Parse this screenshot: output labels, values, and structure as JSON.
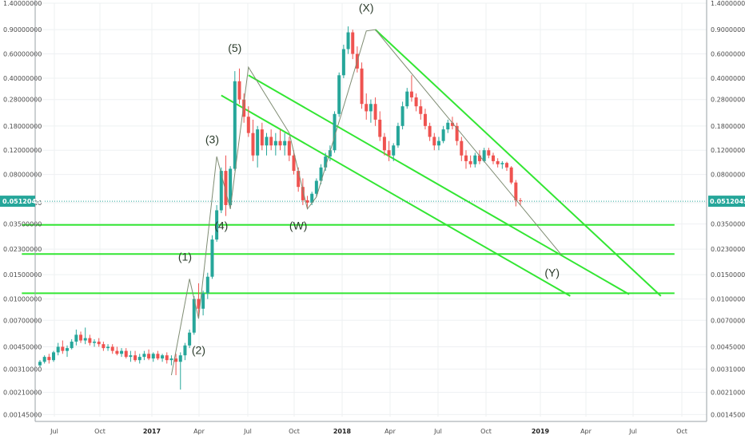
{
  "chart_data": {
    "type": "candlestick",
    "scale": "log",
    "ylim": [
      0.0014,
      1.4
    ],
    "grid": true,
    "y_ticks": [
      "1.40000000",
      "0.90000000",
      "0.60000000",
      "0.40000000",
      "0.28000000",
      "0.18000000",
      "0.12000000",
      "0.08000000",
      "0.05000000",
      "0.03500000",
      "0.02300000",
      "0.01500000",
      "0.01000000",
      "0.00700000",
      "0.00450000",
      "0.00310000",
      "0.00210000",
      "0.00145000"
    ],
    "x_ticks": [
      {
        "label": "Jul",
        "year": false
      },
      {
        "label": "Oct",
        "year": false
      },
      {
        "label": "2017",
        "year": true
      },
      {
        "label": "Apr",
        "year": false
      },
      {
        "label": "Jul",
        "year": false
      },
      {
        "label": "Oct",
        "year": false
      },
      {
        "label": "2018",
        "year": true
      },
      {
        "label": "Apr",
        "year": false
      },
      {
        "label": "Jul",
        "year": false
      },
      {
        "label": "Oct",
        "year": false
      },
      {
        "label": "2019",
        "year": true
      },
      {
        "label": "Apr",
        "year": false
      },
      {
        "label": "Jul",
        "year": false
      },
      {
        "label": "Oct",
        "year": false
      }
    ],
    "last_price": "0.05120458",
    "up_color": "#26a69a",
    "down_color": "#ef5350",
    "trendline_color": "#33e633",
    "wave_line_color": "#7f8c73",
    "candles": [
      {
        "o": 0.0033,
        "h": 0.0036,
        "l": 0.0032,
        "c": 0.0035
      },
      {
        "o": 0.0035,
        "h": 0.0039,
        "l": 0.0034,
        "c": 0.0038
      },
      {
        "o": 0.0038,
        "h": 0.004,
        "l": 0.0034,
        "c": 0.0036
      },
      {
        "o": 0.0036,
        "h": 0.0042,
        "l": 0.0035,
        "c": 0.0041
      },
      {
        "o": 0.0041,
        "h": 0.0048,
        "l": 0.0039,
        "c": 0.0045
      },
      {
        "o": 0.0045,
        "h": 0.005,
        "l": 0.004,
        "c": 0.0042
      },
      {
        "o": 0.0042,
        "h": 0.0046,
        "l": 0.0038,
        "c": 0.0044
      },
      {
        "o": 0.0044,
        "h": 0.0051,
        "l": 0.0043,
        "c": 0.0049
      },
      {
        "o": 0.0049,
        "h": 0.006,
        "l": 0.0046,
        "c": 0.0055
      },
      {
        "o": 0.0055,
        "h": 0.0058,
        "l": 0.0048,
        "c": 0.005
      },
      {
        "o": 0.005,
        "h": 0.0062,
        "l": 0.0047,
        "c": 0.0052
      },
      {
        "o": 0.0052,
        "h": 0.0055,
        "l": 0.0046,
        "c": 0.0048
      },
      {
        "o": 0.0048,
        "h": 0.0051,
        "l": 0.0045,
        "c": 0.0049
      },
      {
        "o": 0.0049,
        "h": 0.0052,
        "l": 0.0045,
        "c": 0.0047
      },
      {
        "o": 0.0047,
        "h": 0.0049,
        "l": 0.0042,
        "c": 0.0044
      },
      {
        "o": 0.0044,
        "h": 0.0047,
        "l": 0.0042,
        "c": 0.0045
      },
      {
        "o": 0.0045,
        "h": 0.0047,
        "l": 0.004,
        "c": 0.0042
      },
      {
        "o": 0.0042,
        "h": 0.0045,
        "l": 0.0039,
        "c": 0.004
      },
      {
        "o": 0.004,
        "h": 0.0044,
        "l": 0.0038,
        "c": 0.0042
      },
      {
        "o": 0.0042,
        "h": 0.0044,
        "l": 0.0037,
        "c": 0.0038
      },
      {
        "o": 0.0038,
        "h": 0.0042,
        "l": 0.0035,
        "c": 0.0039
      },
      {
        "o": 0.0039,
        "h": 0.0042,
        "l": 0.0035,
        "c": 0.0036
      },
      {
        "o": 0.0036,
        "h": 0.004,
        "l": 0.0034,
        "c": 0.0038
      },
      {
        "o": 0.0038,
        "h": 0.0042,
        "l": 0.0036,
        "c": 0.004
      },
      {
        "o": 0.004,
        "h": 0.0043,
        "l": 0.0036,
        "c": 0.0037
      },
      {
        "o": 0.0037,
        "h": 0.0041,
        "l": 0.0035,
        "c": 0.004
      },
      {
        "o": 0.004,
        "h": 0.0042,
        "l": 0.0036,
        "c": 0.0037
      },
      {
        "o": 0.0037,
        "h": 0.004,
        "l": 0.0035,
        "c": 0.0039
      },
      {
        "o": 0.0039,
        "h": 0.0041,
        "l": 0.0034,
        "c": 0.0036
      },
      {
        "o": 0.0036,
        "h": 0.0039,
        "l": 0.0033,
        "c": 0.0037
      },
      {
        "o": 0.0037,
        "h": 0.004,
        "l": 0.0028,
        "c": 0.0035
      },
      {
        "o": 0.0035,
        "h": 0.0041,
        "l": 0.0022,
        "c": 0.0039
      },
      {
        "o": 0.0039,
        "h": 0.0048,
        "l": 0.0036,
        "c": 0.0046
      },
      {
        "o": 0.0046,
        "h": 0.006,
        "l": 0.0044,
        "c": 0.0057
      },
      {
        "o": 0.0057,
        "h": 0.0105,
        "l": 0.0055,
        "c": 0.01
      },
      {
        "o": 0.01,
        "h": 0.013,
        "l": 0.0072,
        "c": 0.0085
      },
      {
        "o": 0.0085,
        "h": 0.0115,
        "l": 0.0076,
        "c": 0.011
      },
      {
        "o": 0.011,
        "h": 0.0155,
        "l": 0.01,
        "c": 0.0145
      },
      {
        "o": 0.0145,
        "h": 0.029,
        "l": 0.014,
        "c": 0.027
      },
      {
        "o": 0.027,
        "h": 0.048,
        "l": 0.026,
        "c": 0.044
      },
      {
        "o": 0.044,
        "h": 0.09,
        "l": 0.042,
        "c": 0.085
      },
      {
        "o": 0.085,
        "h": 0.11,
        "l": 0.04,
        "c": 0.048
      },
      {
        "o": 0.048,
        "h": 0.092,
        "l": 0.045,
        "c": 0.088
      },
      {
        "o": 0.088,
        "h": 0.45,
        "l": 0.085,
        "c": 0.38
      },
      {
        "o": 0.38,
        "h": 0.47,
        "l": 0.26,
        "c": 0.28
      },
      {
        "o": 0.28,
        "h": 0.31,
        "l": 0.19,
        "c": 0.21
      },
      {
        "o": 0.21,
        "h": 0.25,
        "l": 0.15,
        "c": 0.16
      },
      {
        "o": 0.16,
        "h": 0.2,
        "l": 0.1,
        "c": 0.11
      },
      {
        "o": 0.11,
        "h": 0.18,
        "l": 0.09,
        "c": 0.17
      },
      {
        "o": 0.17,
        "h": 0.19,
        "l": 0.12,
        "c": 0.13
      },
      {
        "o": 0.13,
        "h": 0.16,
        "l": 0.11,
        "c": 0.15
      },
      {
        "o": 0.15,
        "h": 0.17,
        "l": 0.12,
        "c": 0.13
      },
      {
        "o": 0.13,
        "h": 0.16,
        "l": 0.11,
        "c": 0.14
      },
      {
        "o": 0.14,
        "h": 0.17,
        "l": 0.12,
        "c": 0.13
      },
      {
        "o": 0.13,
        "h": 0.16,
        "l": 0.11,
        "c": 0.14
      },
      {
        "o": 0.14,
        "h": 0.15,
        "l": 0.1,
        "c": 0.11
      },
      {
        "o": 0.11,
        "h": 0.12,
        "l": 0.08,
        "c": 0.085
      },
      {
        "o": 0.085,
        "h": 0.09,
        "l": 0.06,
        "c": 0.065
      },
      {
        "o": 0.065,
        "h": 0.075,
        "l": 0.048,
        "c": 0.052
      },
      {
        "o": 0.052,
        "h": 0.056,
        "l": 0.045,
        "c": 0.05
      },
      {
        "o": 0.05,
        "h": 0.06,
        "l": 0.048,
        "c": 0.058
      },
      {
        "o": 0.058,
        "h": 0.075,
        "l": 0.055,
        "c": 0.072
      },
      {
        "o": 0.072,
        "h": 0.095,
        "l": 0.068,
        "c": 0.09
      },
      {
        "o": 0.09,
        "h": 0.115,
        "l": 0.085,
        "c": 0.108
      },
      {
        "o": 0.108,
        "h": 0.13,
        "l": 0.1,
        "c": 0.12
      },
      {
        "o": 0.12,
        "h": 0.23,
        "l": 0.115,
        "c": 0.22
      },
      {
        "o": 0.22,
        "h": 0.44,
        "l": 0.21,
        "c": 0.42
      },
      {
        "o": 0.42,
        "h": 0.7,
        "l": 0.4,
        "c": 0.65
      },
      {
        "o": 0.65,
        "h": 0.95,
        "l": 0.6,
        "c": 0.86
      },
      {
        "o": 0.86,
        "h": 0.9,
        "l": 0.55,
        "c": 0.6
      },
      {
        "o": 0.6,
        "h": 0.68,
        "l": 0.44,
        "c": 0.47
      },
      {
        "o": 0.47,
        "h": 0.52,
        "l": 0.24,
        "c": 0.26
      },
      {
        "o": 0.26,
        "h": 0.31,
        "l": 0.2,
        "c": 0.23
      },
      {
        "o": 0.23,
        "h": 0.28,
        "l": 0.19,
        "c": 0.26
      },
      {
        "o": 0.26,
        "h": 0.29,
        "l": 0.18,
        "c": 0.2
      },
      {
        "o": 0.2,
        "h": 0.23,
        "l": 0.14,
        "c": 0.15
      },
      {
        "o": 0.15,
        "h": 0.16,
        "l": 0.11,
        "c": 0.12
      },
      {
        "o": 0.12,
        "h": 0.14,
        "l": 0.1,
        "c": 0.11
      },
      {
        "o": 0.11,
        "h": 0.135,
        "l": 0.1,
        "c": 0.13
      },
      {
        "o": 0.13,
        "h": 0.19,
        "l": 0.125,
        "c": 0.18
      },
      {
        "o": 0.18,
        "h": 0.27,
        "l": 0.17,
        "c": 0.25
      },
      {
        "o": 0.25,
        "h": 0.34,
        "l": 0.24,
        "c": 0.32
      },
      {
        "o": 0.32,
        "h": 0.42,
        "l": 0.27,
        "c": 0.29
      },
      {
        "o": 0.29,
        "h": 0.31,
        "l": 0.23,
        "c": 0.25
      },
      {
        "o": 0.25,
        "h": 0.28,
        "l": 0.2,
        "c": 0.22
      },
      {
        "o": 0.22,
        "h": 0.24,
        "l": 0.17,
        "c": 0.18
      },
      {
        "o": 0.18,
        "h": 0.19,
        "l": 0.14,
        "c": 0.15
      },
      {
        "o": 0.15,
        "h": 0.16,
        "l": 0.12,
        "c": 0.13
      },
      {
        "o": 0.13,
        "h": 0.15,
        "l": 0.12,
        "c": 0.14
      },
      {
        "o": 0.14,
        "h": 0.18,
        "l": 0.135,
        "c": 0.17
      },
      {
        "o": 0.17,
        "h": 0.2,
        "l": 0.16,
        "c": 0.19
      },
      {
        "o": 0.19,
        "h": 0.21,
        "l": 0.17,
        "c": 0.18
      },
      {
        "o": 0.18,
        "h": 0.19,
        "l": 0.13,
        "c": 0.14
      },
      {
        "o": 0.14,
        "h": 0.15,
        "l": 0.1,
        "c": 0.11
      },
      {
        "o": 0.11,
        "h": 0.12,
        "l": 0.088,
        "c": 0.1
      },
      {
        "o": 0.1,
        "h": 0.11,
        "l": 0.09,
        "c": 0.095
      },
      {
        "o": 0.095,
        "h": 0.115,
        "l": 0.09,
        "c": 0.11
      },
      {
        "o": 0.11,
        "h": 0.12,
        "l": 0.095,
        "c": 0.1
      },
      {
        "o": 0.1,
        "h": 0.125,
        "l": 0.098,
        "c": 0.12
      },
      {
        "o": 0.12,
        "h": 0.125,
        "l": 0.105,
        "c": 0.11
      },
      {
        "o": 0.11,
        "h": 0.115,
        "l": 0.095,
        "c": 0.1
      },
      {
        "o": 0.1,
        "h": 0.105,
        "l": 0.09,
        "c": 0.095
      },
      {
        "o": 0.095,
        "h": 0.1,
        "l": 0.088,
        "c": 0.097
      },
      {
        "o": 0.097,
        "h": 0.099,
        "l": 0.085,
        "c": 0.09
      },
      {
        "o": 0.09,
        "h": 0.092,
        "l": 0.068,
        "c": 0.07
      },
      {
        "o": 0.07,
        "h": 0.073,
        "l": 0.047,
        "c": 0.052
      },
      {
        "o": 0.052,
        "h": 0.054,
        "l": 0.048,
        "c": 0.0512
      }
    ],
    "trendlines": [
      {
        "name": "channel-upper",
        "from": {
          "i": 46,
          "v": 0.42
        },
        "to": {
          "i": 130,
          "v": 0.0108
        }
      },
      {
        "name": "channel-lower",
        "from": {
          "i": 40,
          "v": 0.3
        },
        "to": {
          "i": 117,
          "v": 0.0105
        }
      },
      {
        "name": "falling-line",
        "from": {
          "i": 74,
          "v": 0.9
        },
        "to": {
          "i": 137,
          "v": 0.0105
        }
      },
      {
        "name": "support-035",
        "from": {
          "i": -4,
          "v": 0.0345
        },
        "to": {
          "i": 140,
          "v": 0.0345
        }
      },
      {
        "name": "support-021",
        "from": {
          "i": -4,
          "v": 0.0212
        },
        "to": {
          "i": 140,
          "v": 0.0212
        }
      },
      {
        "name": "support-011",
        "from": {
          "i": -4,
          "v": 0.011
        },
        "to": {
          "i": 140,
          "v": 0.011
        }
      }
    ],
    "wave_path": [
      {
        "i": 29,
        "v": 0.0028
      },
      {
        "i": 33,
        "v": 0.014
      },
      {
        "i": 35,
        "v": 0.0072
      },
      {
        "i": 39,
        "v": 0.108
      },
      {
        "i": 42,
        "v": 0.045
      },
      {
        "i": 46,
        "v": 0.48
      },
      {
        "i": 55,
        "v": 0.16
      },
      {
        "i": 59,
        "v": 0.045
      },
      {
        "i": 61,
        "v": 0.055
      },
      {
        "i": 72,
        "v": 0.88
      },
      {
        "i": 74,
        "v": 0.9
      },
      {
        "i": 115,
        "v": 0.021
      }
    ],
    "wave_labels": [
      {
        "text": "(1)",
        "i": 32,
        "v": 0.019
      },
      {
        "text": "(2)",
        "i": 35,
        "v": 0.004
      },
      {
        "text": "(3)",
        "i": 38,
        "v": 0.135
      },
      {
        "text": "(4)",
        "i": 40,
        "v": 0.032
      },
      {
        "text": "(5)",
        "i": 43,
        "v": 0.62
      },
      {
        "text": "(W)",
        "i": 57,
        "v": 0.032
      },
      {
        "text": "(X)",
        "i": 72,
        "v": 1.22
      },
      {
        "text": "(Y)",
        "i": 113,
        "v": 0.0145
      }
    ]
  }
}
